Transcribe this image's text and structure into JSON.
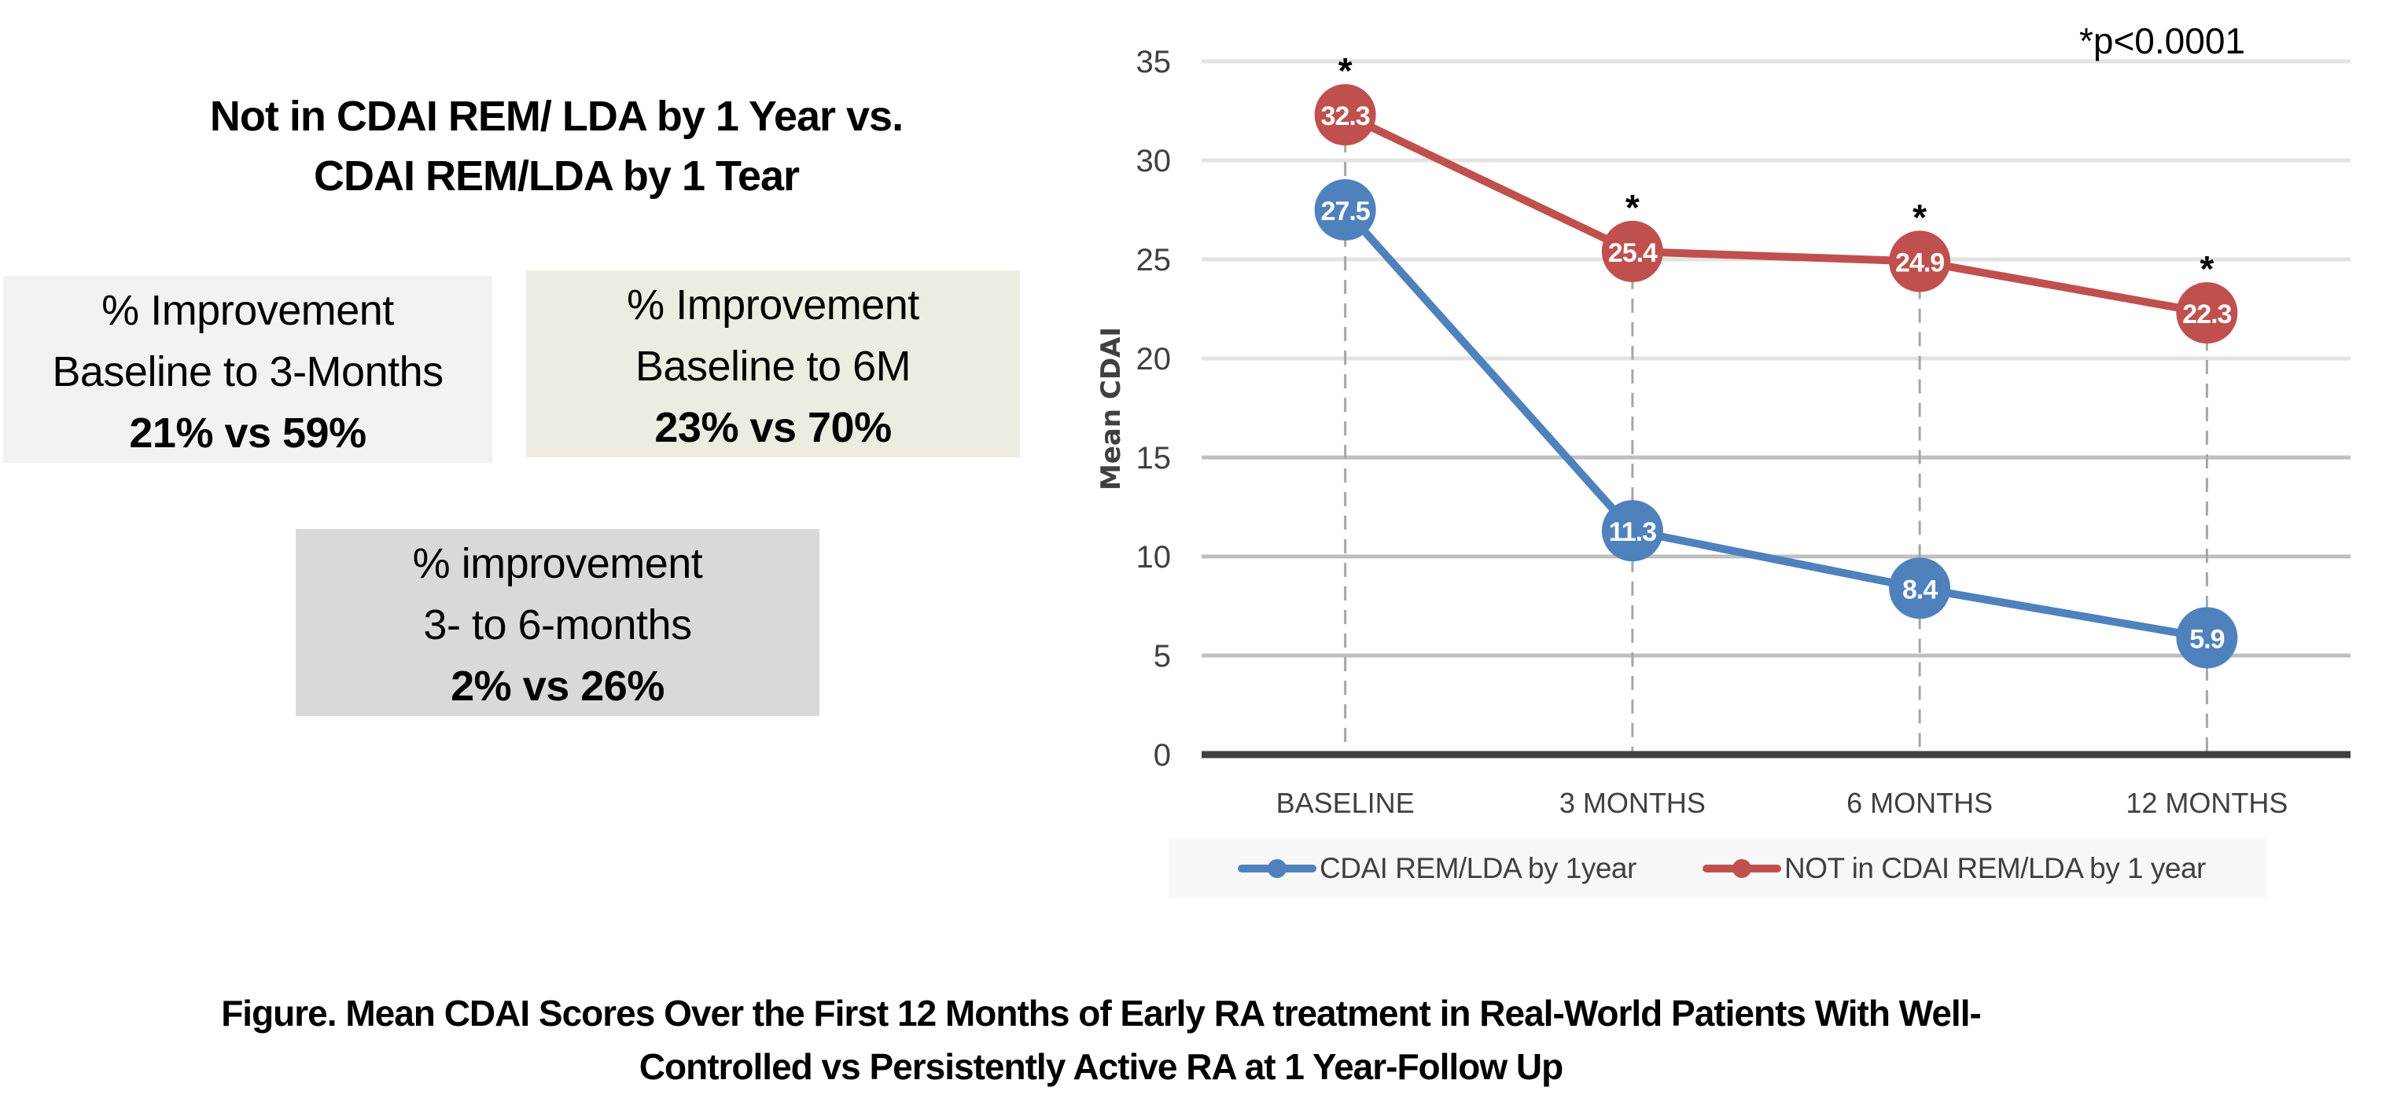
{
  "left_panel": {
    "title_lines": [
      "Not in CDAI REM/ LDA by 1 Year vs.",
      "CDAI REM/LDA by 1 Tear"
    ],
    "boxes": [
      {
        "line1": "% Improvement",
        "line2": "Baseline to 3-Months",
        "value": "21% vs 59%",
        "color": "#F2F2F2"
      },
      {
        "line1": "% Improvement",
        "line2": "Baseline to 6M",
        "value": "23% vs 70%",
        "color": "#EEEBE1"
      },
      {
        "line1": "% improvement",
        "line2": "3- to 6-months",
        "value": "2% vs 26%",
        "color": "#D9D9D9"
      }
    ]
  },
  "caption_lines": [
    "Figure. Mean CDAI Scores Over the First 12 Months of Early RA treatment in Real-World Patients With Well-",
    "Controlled vs Persistently Active RA at 1 Year-Follow Up"
  ],
  "chart_data": {
    "type": "line",
    "title": "",
    "xlabel": "",
    "ylabel": "Mean CDAI",
    "categories": [
      "BASELINE",
      "3 MONTHS",
      "6 MONTHS",
      "12 MONTHS"
    ],
    "ylim": [
      0,
      35
    ],
    "yticks": [
      0,
      5,
      10,
      15,
      20,
      25,
      30,
      35
    ],
    "grid": true,
    "legend_position": "bottom",
    "series": [
      {
        "name": "CDAI REM/LDA by 1year",
        "color": "#4F81BD",
        "values": [
          27.5,
          11.3,
          8.4,
          5.9
        ],
        "labels": [
          "27.5",
          "11.3",
          "8.4",
          "5.9"
        ]
      },
      {
        "name": "NOT in CDAI REM/LDA by 1 year",
        "color": "#C0504D",
        "values": [
          32.3,
          25.4,
          24.9,
          22.3
        ],
        "labels": [
          "32.3",
          "25.4",
          "24.9",
          "22.3"
        ]
      }
    ],
    "significance_markers": [
      "*",
      "*",
      "*",
      "*"
    ],
    "annotation": "*p<0.0001"
  }
}
